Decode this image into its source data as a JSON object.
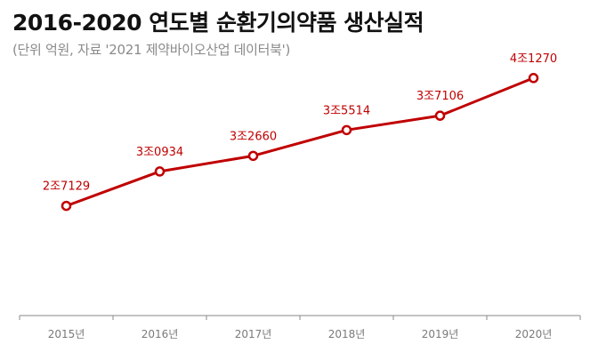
{
  "title": "2016-2020 연도별 순환기의약품 생산실적",
  "subtitle": "(단위 억원, 자료 '2021 제약바이오산업 데이터북')",
  "colors": {
    "line": "#c00000",
    "axis": "#888888",
    "label": "#c00000"
  },
  "chart_data": {
    "type": "line",
    "categories": [
      "2015년",
      "2016년",
      "2017년",
      "2018년",
      "2019년",
      "2020년"
    ],
    "series": [
      {
        "values": [
          27129,
          30934,
          32660,
          35514,
          37106,
          41270
        ],
        "labels": [
          "2조7129",
          "3조0934",
          "3조2660",
          "3조5514",
          "3조7106",
          "4조1270"
        ]
      }
    ],
    "title": "2016-2020 연도별 순환기의약품 생산실적",
    "ylabel": "억원",
    "ylim": [
      15000,
      44000
    ],
    "grid": false
  }
}
